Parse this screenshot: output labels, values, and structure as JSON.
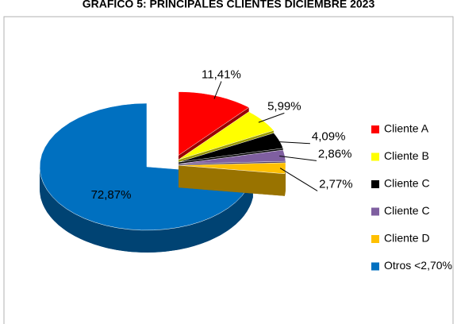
{
  "chart_data": {
    "type": "pie",
    "title": "GRAFICO 5: PRINCIPALES CLIENTES DICIEMBRE 2023",
    "categories": [
      "Cliente A",
      "Cliente B",
      "Cliente C",
      "Cliente C",
      "Cliente D",
      "Otros <2,70%"
    ],
    "values": [
      11.41,
      5.99,
      4.09,
      2.86,
      2.77,
      72.87
    ],
    "value_labels": [
      "11,41%",
      "5,99%",
      "4,09%",
      "2,86%",
      "2,77%",
      "72,87%"
    ],
    "colors": [
      "#ff0000",
      "#ffff00",
      "#000000",
      "#7f5fa0",
      "#ffc000",
      "#0070c0"
    ],
    "legend": "right"
  }
}
